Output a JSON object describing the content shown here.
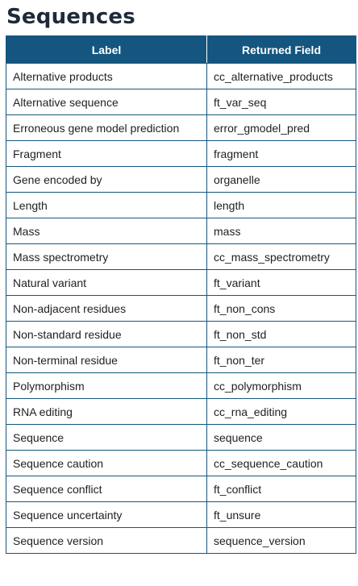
{
  "title": "Sequences",
  "table": {
    "headers": {
      "label": "Label",
      "field": "Returned Field"
    },
    "rows": [
      {
        "label": "Alternative products",
        "field": "cc_alternative_products"
      },
      {
        "label": "Alternative sequence",
        "field": "ft_var_seq"
      },
      {
        "label": "Erroneous gene model prediction",
        "field": "error_gmodel_pred"
      },
      {
        "label": "Fragment",
        "field": "fragment"
      },
      {
        "label": "Gene encoded by",
        "field": "organelle"
      },
      {
        "label": "Length",
        "field": "length"
      },
      {
        "label": "Mass",
        "field": "mass"
      },
      {
        "label": "Mass spectrometry",
        "field": "cc_mass_spectrometry"
      },
      {
        "label": "Natural variant",
        "field": "ft_variant"
      },
      {
        "label": "Non-adjacent residues",
        "field": "ft_non_cons"
      },
      {
        "label": "Non-standard residue",
        "field": "ft_non_std"
      },
      {
        "label": "Non-terminal residue",
        "field": "ft_non_ter"
      },
      {
        "label": "Polymorphism",
        "field": "cc_polymorphism"
      },
      {
        "label": "RNA editing",
        "field": "cc_rna_editing"
      },
      {
        "label": "Sequence",
        "field": "sequence"
      },
      {
        "label": "Sequence caution",
        "field": "cc_sequence_caution"
      },
      {
        "label": "Sequence conflict",
        "field": "ft_conflict"
      },
      {
        "label": "Sequence uncertainty",
        "field": "ft_unsure"
      },
      {
        "label": "Sequence version",
        "field": "sequence_version"
      }
    ]
  },
  "colors": {
    "header_bg": "#14567f",
    "header_text": "#ffffff",
    "border": "#14567f",
    "title": "#1e2a3a"
  }
}
